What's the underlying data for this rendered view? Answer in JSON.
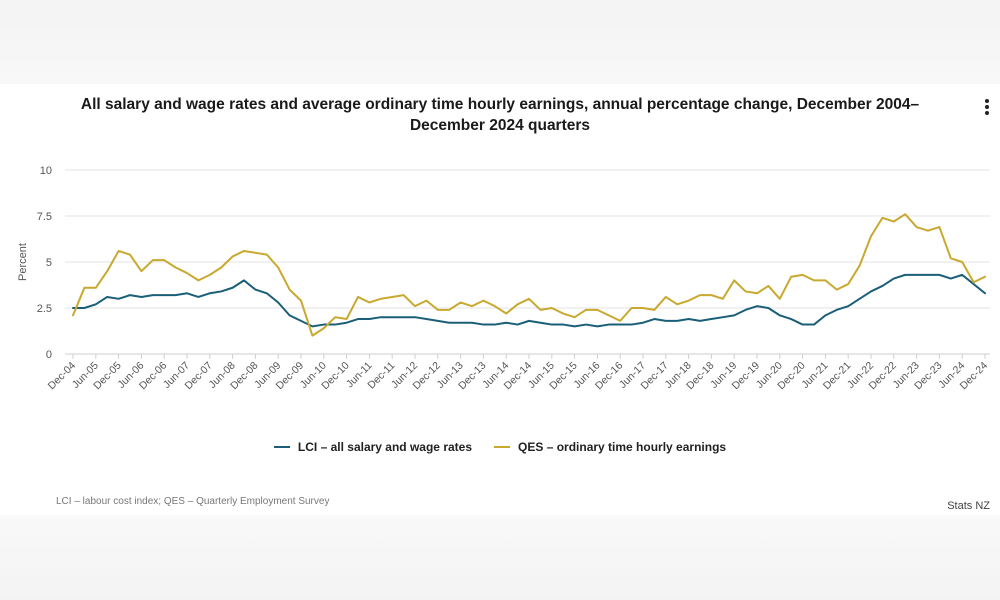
{
  "colors": {
    "lci": "#1a5e78",
    "qes": "#c9a82f",
    "grid": "#e3e3e3",
    "axis": "#cfcfcf",
    "text": "#555555"
  },
  "chart_data": {
    "type": "line",
    "title": "All salary and wage rates and average ordinary time hourly earnings, annual percentage change, December 2004–December 2024 quarters",
    "xlabel": "",
    "ylabel": "Percent",
    "ylim": [
      0,
      10
    ],
    "yticks": [
      0,
      2.5,
      5,
      7.5,
      10
    ],
    "ytick_labels": [
      "0",
      "2.5",
      "5",
      "7.5",
      "10"
    ],
    "grid": true,
    "legend_position": "bottom",
    "x": [
      "Dec-04",
      "Mar-05",
      "Jun-05",
      "Sep-05",
      "Dec-05",
      "Mar-06",
      "Jun-06",
      "Sep-06",
      "Dec-06",
      "Mar-07",
      "Jun-07",
      "Sep-07",
      "Dec-07",
      "Mar-08",
      "Jun-08",
      "Sep-08",
      "Dec-08",
      "Mar-09",
      "Jun-09",
      "Sep-09",
      "Dec-09",
      "Mar-10",
      "Jun-10",
      "Sep-10",
      "Dec-10",
      "Mar-11",
      "Jun-11",
      "Sep-11",
      "Dec-11",
      "Mar-12",
      "Jun-12",
      "Sep-12",
      "Dec-12",
      "Mar-13",
      "Jun-13",
      "Sep-13",
      "Dec-13",
      "Mar-14",
      "Jun-14",
      "Sep-14",
      "Dec-14",
      "Mar-15",
      "Jun-15",
      "Sep-15",
      "Dec-15",
      "Mar-16",
      "Jun-16",
      "Sep-16",
      "Dec-16",
      "Mar-17",
      "Jun-17",
      "Sep-17",
      "Dec-17",
      "Mar-18",
      "Jun-18",
      "Sep-18",
      "Dec-18",
      "Mar-19",
      "Jun-19",
      "Sep-19",
      "Dec-19",
      "Mar-20",
      "Jun-20",
      "Sep-20",
      "Dec-20",
      "Mar-21",
      "Jun-21",
      "Sep-21",
      "Dec-21",
      "Mar-22",
      "Jun-22",
      "Sep-22",
      "Dec-22",
      "Mar-23",
      "Jun-23",
      "Sep-23",
      "Dec-23",
      "Mar-24",
      "Jun-24",
      "Sep-24",
      "Dec-24"
    ],
    "xtick_labels": [
      "Dec-04",
      "Jun-05",
      "Dec-05",
      "Jun-06",
      "Dec-06",
      "Jun-07",
      "Dec-07",
      "Jun-08",
      "Dec-08",
      "Jun-09",
      "Dec-09",
      "Jun-10",
      "Dec-10",
      "Jun-11",
      "Dec-11",
      "Jun-12",
      "Dec-12",
      "Jun-13",
      "Dec-13",
      "Jun-14",
      "Dec-14",
      "Jun-15",
      "Dec-15",
      "Jun-16",
      "Dec-16",
      "Jun-17",
      "Dec-17",
      "Jun-18",
      "Dec-18",
      "Jun-19",
      "Dec-19",
      "Jun-20",
      "Dec-20",
      "Jun-21",
      "Dec-21",
      "Jun-22",
      "Dec-22",
      "Jun-23",
      "Dec-23",
      "Jun-24",
      "Dec-24"
    ],
    "series": [
      {
        "name": "LCI – all salary and wage rates",
        "color": "#1a5e78",
        "values": [
          2.5,
          2.5,
          2.7,
          3.1,
          3.0,
          3.2,
          3.1,
          3.2,
          3.2,
          3.2,
          3.3,
          3.1,
          3.3,
          3.4,
          3.6,
          4.0,
          3.5,
          3.3,
          2.8,
          2.1,
          1.8,
          1.5,
          1.6,
          1.6,
          1.7,
          1.9,
          1.9,
          2.0,
          2.0,
          2.0,
          2.0,
          1.9,
          1.8,
          1.7,
          1.7,
          1.7,
          1.6,
          1.6,
          1.7,
          1.6,
          1.8,
          1.7,
          1.6,
          1.6,
          1.5,
          1.6,
          1.5,
          1.6,
          1.6,
          1.6,
          1.7,
          1.9,
          1.8,
          1.8,
          1.9,
          1.8,
          1.9,
          2.0,
          2.1,
          2.4,
          2.6,
          2.5,
          2.1,
          1.9,
          1.6,
          1.6,
          2.1,
          2.4,
          2.6,
          3.0,
          3.4,
          3.7,
          4.1,
          4.3,
          4.3,
          4.3,
          4.3,
          4.1,
          4.3,
          3.8,
          3.3
        ]
      },
      {
        "name": "QES – ordinary time hourly earnings",
        "color": "#c9a82f",
        "values": [
          2.1,
          3.6,
          3.6,
          4.5,
          5.6,
          5.4,
          4.5,
          5.1,
          5.1,
          4.7,
          4.4,
          4.0,
          4.3,
          4.7,
          5.3,
          5.6,
          5.5,
          5.4,
          4.7,
          3.5,
          2.9,
          1.0,
          1.4,
          2.0,
          1.9,
          3.1,
          2.8,
          3.0,
          3.1,
          3.2,
          2.6,
          2.9,
          2.4,
          2.4,
          2.8,
          2.6,
          2.9,
          2.6,
          2.2,
          2.7,
          3.0,
          2.4,
          2.5,
          2.2,
          2.0,
          2.4,
          2.4,
          2.1,
          1.8,
          2.5,
          2.5,
          2.4,
          3.1,
          2.7,
          2.9,
          3.2,
          3.2,
          3.0,
          4.0,
          3.4,
          3.3,
          3.7,
          3.0,
          4.2,
          4.3,
          4.0,
          4.0,
          3.5,
          3.8,
          4.8,
          6.4,
          7.4,
          7.2,
          7.6,
          6.9,
          6.7,
          6.9,
          5.2,
          5.0,
          3.9,
          4.2
        ]
      }
    ]
  },
  "ui": {
    "menu_icon": "vertical-ellipsis-icon",
    "footnote": "LCI – labour cost index; QES – Quarterly Employment Survey",
    "source": "Stats NZ"
  }
}
